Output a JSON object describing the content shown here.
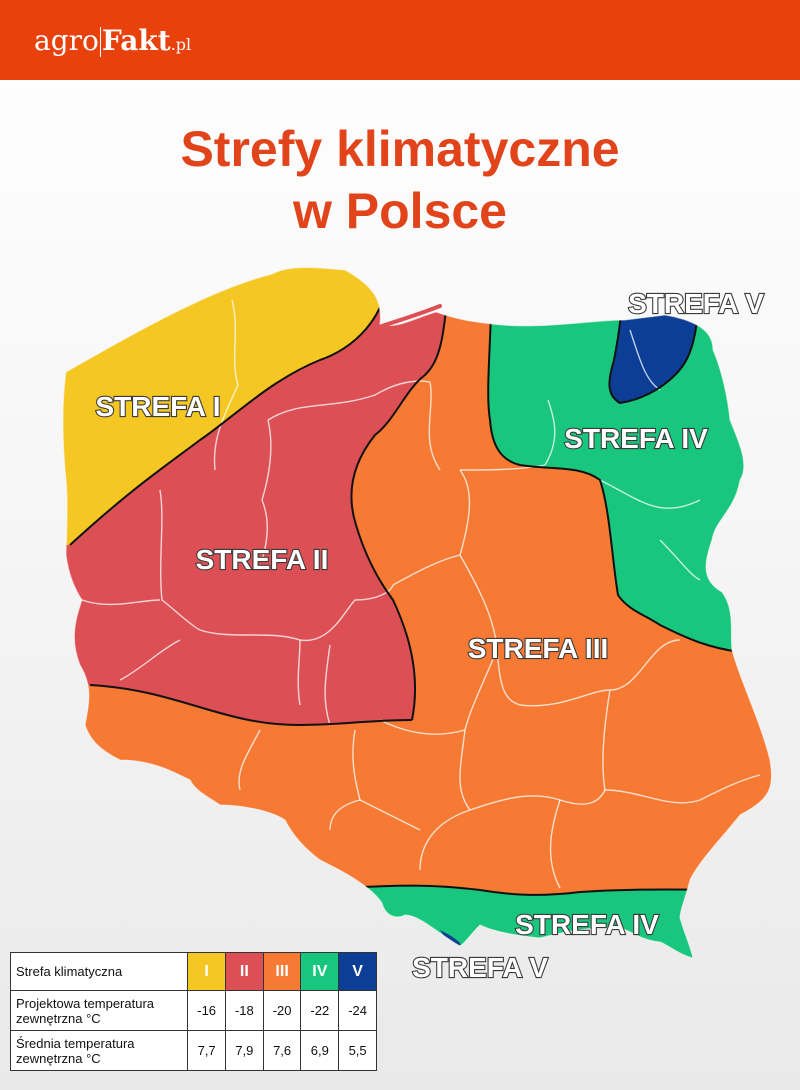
{
  "header": {
    "logo_part1": "agro",
    "logo_part2": "Fakt",
    "logo_part3": ".pl"
  },
  "title": {
    "line1": "Strefy klimatyczne",
    "line2": "w Polsce"
  },
  "map": {
    "labels": {
      "zone1": "STREFA I",
      "zone2": "STREFA II",
      "zone3": "STREFA III",
      "zone4_north": "STREFA IV",
      "zone4_south": "STREFA IV",
      "zone5_north": "STREFA V",
      "zone5_south": "STREFA V"
    },
    "colors": {
      "zone1": "#f5c723",
      "zone2": "#dc5055",
      "zone3": "#f67a34",
      "zone4": "#18c77d",
      "zone5": "#0b3e94"
    }
  },
  "legend": {
    "header_label": "Strefa klimatyczna",
    "zones": [
      "I",
      "II",
      "III",
      "IV",
      "V"
    ],
    "rows": [
      {
        "label_line1": "Projektowa temperatura",
        "label_line2": "zewnętrzna °C",
        "values": [
          "-16",
          "-18",
          "-20",
          "-22",
          "-24"
        ]
      },
      {
        "label_line1": "Średnia temperatura",
        "label_line2": "zewnętrzna °C",
        "values": [
          "7,7",
          "7,9",
          "7,6",
          "6,9",
          "5,5"
        ]
      }
    ]
  }
}
